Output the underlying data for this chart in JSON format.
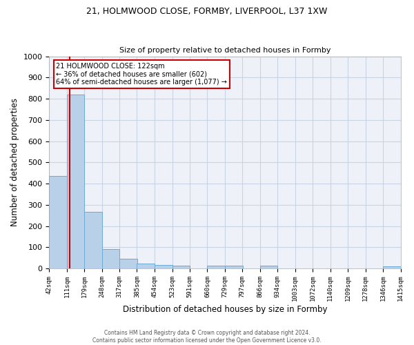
{
  "title_line1": "21, HOLMWOOD CLOSE, FORMBY, LIVERPOOL, L37 1XW",
  "title_line2": "Size of property relative to detached houses in Formby",
  "xlabel": "Distribution of detached houses by size in Formby",
  "ylabel": "Number of detached properties",
  "bar_color": "#b8d0e8",
  "bar_edge_color": "#6aaad4",
  "bins": [
    42,
    111,
    179,
    248,
    317,
    385,
    454,
    523,
    591,
    660,
    729,
    797,
    866,
    934,
    1003,
    1072,
    1140,
    1209,
    1278,
    1346,
    1415
  ],
  "heights": [
    435,
    820,
    268,
    92,
    45,
    22,
    17,
    12,
    0,
    12,
    12,
    0,
    12,
    0,
    0,
    0,
    0,
    0,
    0,
    10
  ],
  "property_size": 122,
  "property_line": "21 HOLMWOOD CLOSE: 122sqm",
  "annotation_line2": "← 36% of detached houses are smaller (602)",
  "annotation_line3": "64% of semi-detached houses are larger (1,077) →",
  "vline_color": "#cc0000",
  "annotation_box_color": "#cc0000",
  "ylim": [
    0,
    1000
  ],
  "yticks": [
    0,
    100,
    200,
    300,
    400,
    500,
    600,
    700,
    800,
    900,
    1000
  ],
  "tick_labels": [
    "42sqm",
    "111sqm",
    "179sqm",
    "248sqm",
    "317sqm",
    "385sqm",
    "454sqm",
    "523sqm",
    "591sqm",
    "660sqm",
    "729sqm",
    "797sqm",
    "866sqm",
    "934sqm",
    "1003sqm",
    "1072sqm",
    "1140sqm",
    "1209sqm",
    "1278sqm",
    "1346sqm",
    "1415sqm"
  ],
  "footer_line1": "Contains HM Land Registry data © Crown copyright and database right 2024.",
  "footer_line2": "Contains public sector information licensed under the Open Government Licence v3.0.",
  "bg_color": "#eef2f8",
  "grid_color": "#c8d4e4"
}
